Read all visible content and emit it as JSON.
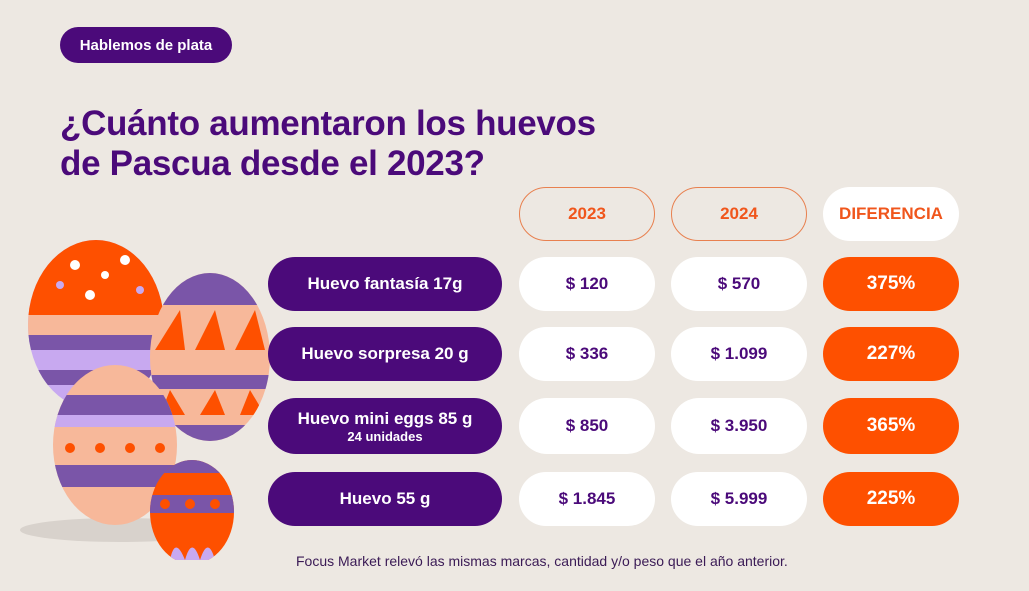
{
  "badge": "Hablemos de plata",
  "title": {
    "line1": "¿Cuánto aumentaron los huevos",
    "line2": "de Pascua desde el 2023?"
  },
  "colors": {
    "background": "#ede8e2",
    "purple": "#4b0a7a",
    "orange": "#fe5000"
  },
  "chart_data": {
    "type": "table",
    "columns": [
      "2023",
      "2024",
      "DIFERENCIA"
    ],
    "rows": [
      {
        "label": "Huevo fantasía 17g",
        "sub": "",
        "v2023": "$ 120",
        "v2024": "$ 570",
        "diff": "375%"
      },
      {
        "label": "Huevo sorpresa 20 g",
        "sub": "",
        "v2023": "$ 336",
        "v2024": "$ 1.099",
        "diff": "227%"
      },
      {
        "label": "Huevo mini eggs 85 g",
        "sub": "24 unidades",
        "v2023": "$ 850",
        "v2024": "$ 3.950",
        "diff": "365%"
      },
      {
        "label": "Huevo 55 g",
        "sub": "",
        "v2023": "$ 1.845",
        "v2024": "$ 5.999",
        "diff": "225%"
      }
    ]
  },
  "illustration": "easter-eggs",
  "footer": "Focus Market relevó las mismas marcas, cantidad y/o peso que el año anterior."
}
